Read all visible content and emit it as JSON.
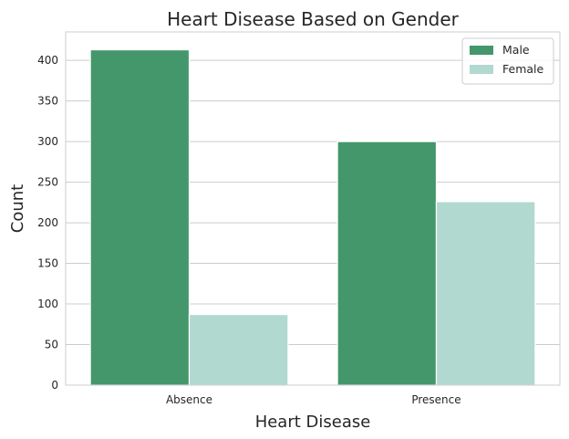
{
  "chart_data": {
    "type": "bar",
    "title": "Heart Disease Based on Gender",
    "xlabel": "Heart Disease",
    "ylabel": "Count",
    "categories": [
      "Absence",
      "Presence"
    ],
    "series": [
      {
        "name": "Male",
        "values": [
          413,
          300
        ],
        "color": "#44976a"
      },
      {
        "name": "Female",
        "values": [
          87,
          226
        ],
        "color": "#b1d9d0"
      }
    ],
    "ylim": [
      0,
      435
    ],
    "yticks": [
      0,
      50,
      100,
      150,
      200,
      250,
      300,
      350,
      400
    ],
    "grid": "horizontal",
    "legend_position": "top-right"
  }
}
